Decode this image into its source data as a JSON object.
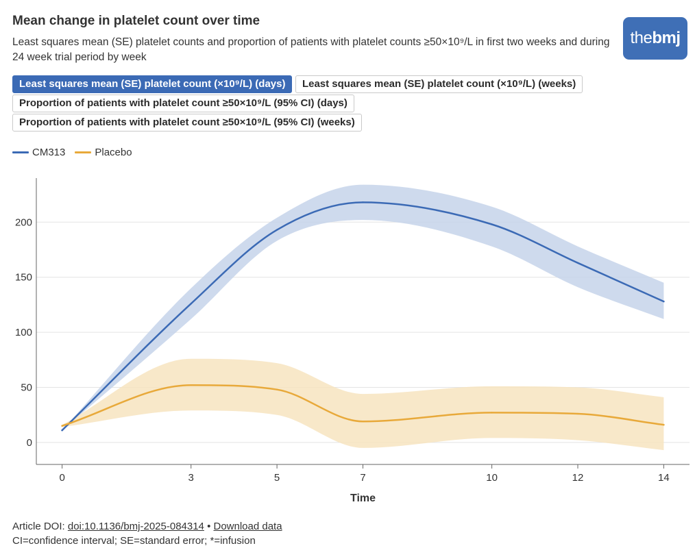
{
  "header": {
    "title": "Mean change in platelet count over time",
    "subtitle": "Least squares mean (SE) platelet counts and proportion of patients with platelet counts ≥50×10⁹/L in first two weeks and during 24 week trial period by week",
    "logo_prefix": "the",
    "logo_suffix": "bmj"
  },
  "tabs": [
    {
      "label": "Least squares mean (SE) platelet count (×10⁹/L) (days)",
      "active": true
    },
    {
      "label": "Least squares mean (SE) platelet count (×10⁹/L) (weeks)",
      "active": false
    },
    {
      "label": "Proportion of patients with platelet count ≥50×10⁹/L (95% CI) (days)",
      "active": false
    },
    {
      "label": "Proportion of patients with platelet count ≥50×10⁹/L (95% CI) (weeks)",
      "active": false
    }
  ],
  "legend": [
    {
      "name": "CM313",
      "color": "#3b6ab5"
    },
    {
      "name": "Placebo",
      "color": "#e8a93a"
    }
  ],
  "chart_data": {
    "type": "line",
    "title": "Mean change in platelet count over time",
    "xlabel": "Time",
    "ylabel": "",
    "x": [
      0,
      3,
      5,
      7,
      10,
      12,
      14
    ],
    "xlim": [
      -0.6,
      14.6
    ],
    "ylim": [
      -20,
      240
    ],
    "yticks": [
      0,
      50,
      100,
      150,
      200
    ],
    "grid": true,
    "series": [
      {
        "name": "CM313",
        "color": "#3b6ab5",
        "band_color": "#c5d4ea",
        "values": [
          11,
          126,
          193,
          218,
          198,
          163,
          128
        ],
        "lower": [
          11,
          112,
          183,
          202,
          178,
          141,
          112
        ],
        "upper": [
          11,
          140,
          204,
          234,
          214,
          178,
          145
        ]
      },
      {
        "name": "Placebo",
        "color": "#e8a93a",
        "band_color": "#f7e4c0",
        "values": [
          15,
          52,
          48,
          19,
          27,
          26,
          16
        ],
        "lower": [
          14,
          29,
          25,
          -5,
          4,
          2,
          -7
        ],
        "upper": [
          16,
          76,
          72,
          44,
          51,
          50,
          41
        ]
      }
    ]
  },
  "footer": {
    "doi_prefix": "Article DOI: ",
    "doi_link": "doi:10.1136/bmj-2025-084314",
    "separator": " • ",
    "download": "Download data",
    "note": "CI=confidence interval; SE=standard error; *=infusion"
  }
}
